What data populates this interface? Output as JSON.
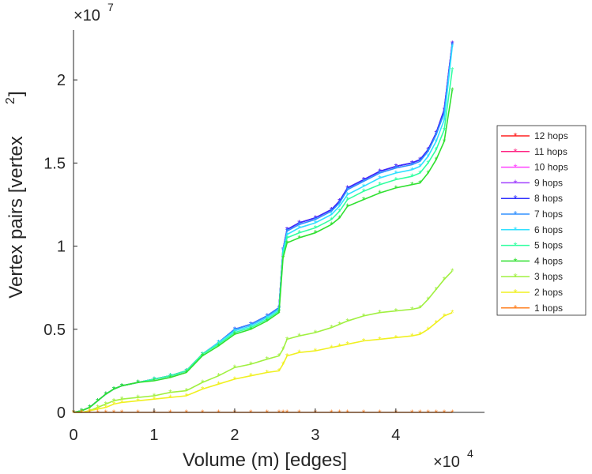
{
  "chart_data": {
    "type": "line",
    "title": "",
    "xlabel": "Volume (m) [edges]",
    "ylabel_main": "Vertex pairs [vertex",
    "ylabel_sup": "2",
    "ylabel_close": "]",
    "x_exponent_base": "×10",
    "x_exponent_power": "4",
    "y_exponent_base": "×10",
    "y_exponent_power": "7",
    "xlim": [
      0,
      5.1
    ],
    "ylim": [
      0,
      2.3
    ],
    "xticks": [
      0,
      1,
      2,
      3,
      4
    ],
    "xtick_labels": [
      "0",
      "1",
      "2",
      "3",
      "4"
    ],
    "yticks": [
      0,
      0.5,
      1,
      1.5,
      2
    ],
    "ytick_labels": [
      "0",
      "0.5",
      "1",
      "1.5",
      "2"
    ],
    "grid": false,
    "legend_position": "right",
    "x": [
      0,
      0.1,
      0.2,
      0.3,
      0.4,
      0.5,
      0.6,
      0.8,
      1.0,
      1.2,
      1.4,
      1.6,
      1.8,
      2.0,
      2.2,
      2.4,
      2.55,
      2.6,
      2.65,
      2.8,
      3.0,
      3.2,
      3.3,
      3.4,
      3.6,
      3.8,
      4.0,
      4.2,
      4.3,
      4.4,
      4.5,
      4.6,
      4.7
    ],
    "series": [
      {
        "name": "12 hops",
        "color": "#ff2020",
        "values": [
          0,
          0.01,
          0.03,
          0.07,
          0.11,
          0.14,
          0.16,
          0.18,
          0.2,
          0.22,
          0.25,
          0.35,
          0.42,
          0.5,
          0.53,
          0.58,
          0.63,
          0.98,
          1.1,
          1.14,
          1.17,
          1.22,
          1.27,
          1.35,
          1.4,
          1.45,
          1.48,
          1.5,
          1.52,
          1.58,
          1.68,
          1.82,
          2.22
        ]
      },
      {
        "name": "11 hops",
        "color": "#ff2080",
        "values": [
          0,
          0.01,
          0.03,
          0.07,
          0.11,
          0.14,
          0.16,
          0.18,
          0.2,
          0.22,
          0.25,
          0.35,
          0.42,
          0.5,
          0.53,
          0.58,
          0.63,
          0.98,
          1.1,
          1.14,
          1.17,
          1.22,
          1.27,
          1.35,
          1.4,
          1.45,
          1.48,
          1.5,
          1.52,
          1.58,
          1.68,
          1.82,
          2.22
        ]
      },
      {
        "name": "10 hops",
        "color": "#ff40ff",
        "values": [
          0,
          0.01,
          0.03,
          0.07,
          0.11,
          0.14,
          0.16,
          0.18,
          0.2,
          0.22,
          0.25,
          0.35,
          0.42,
          0.5,
          0.53,
          0.58,
          0.63,
          0.98,
          1.1,
          1.14,
          1.17,
          1.22,
          1.27,
          1.35,
          1.4,
          1.45,
          1.48,
          1.5,
          1.52,
          1.58,
          1.68,
          1.82,
          2.22
        ]
      },
      {
        "name": "9 hops",
        "color": "#a040ff",
        "values": [
          0,
          0.01,
          0.03,
          0.07,
          0.11,
          0.14,
          0.16,
          0.18,
          0.2,
          0.22,
          0.25,
          0.35,
          0.42,
          0.5,
          0.53,
          0.58,
          0.63,
          0.98,
          1.1,
          1.14,
          1.17,
          1.22,
          1.27,
          1.35,
          1.4,
          1.45,
          1.48,
          1.5,
          1.52,
          1.58,
          1.68,
          1.82,
          2.22
        ]
      },
      {
        "name": "8 hops",
        "color": "#3030ff",
        "values": [
          0,
          0.01,
          0.03,
          0.07,
          0.11,
          0.14,
          0.16,
          0.18,
          0.2,
          0.22,
          0.25,
          0.35,
          0.42,
          0.5,
          0.53,
          0.58,
          0.63,
          0.98,
          1.1,
          1.14,
          1.17,
          1.22,
          1.27,
          1.35,
          1.4,
          1.45,
          1.48,
          1.5,
          1.52,
          1.58,
          1.68,
          1.82,
          2.22
        ]
      },
      {
        "name": "7 hops",
        "color": "#3090ff",
        "values": [
          0,
          0.01,
          0.03,
          0.07,
          0.11,
          0.14,
          0.16,
          0.18,
          0.2,
          0.22,
          0.25,
          0.35,
          0.42,
          0.5,
          0.53,
          0.58,
          0.63,
          0.98,
          1.09,
          1.13,
          1.16,
          1.21,
          1.26,
          1.34,
          1.39,
          1.44,
          1.47,
          1.49,
          1.51,
          1.57,
          1.67,
          1.8,
          2.21
        ]
      },
      {
        "name": "6 hops",
        "color": "#30e0ff",
        "values": [
          0,
          0.01,
          0.03,
          0.07,
          0.11,
          0.14,
          0.16,
          0.18,
          0.2,
          0.22,
          0.25,
          0.35,
          0.42,
          0.49,
          0.52,
          0.57,
          0.62,
          0.97,
          1.07,
          1.11,
          1.14,
          1.19,
          1.24,
          1.31,
          1.36,
          1.41,
          1.44,
          1.46,
          1.48,
          1.54,
          1.63,
          1.76,
          2.2
        ]
      },
      {
        "name": "5 hops",
        "color": "#30ffa0",
        "values": [
          0,
          0.01,
          0.03,
          0.07,
          0.11,
          0.14,
          0.16,
          0.18,
          0.2,
          0.22,
          0.25,
          0.35,
          0.41,
          0.48,
          0.51,
          0.56,
          0.61,
          0.95,
          1.05,
          1.08,
          1.11,
          1.16,
          1.21,
          1.28,
          1.33,
          1.37,
          1.4,
          1.42,
          1.44,
          1.5,
          1.58,
          1.7,
          2.06
        ]
      },
      {
        "name": "4 hops",
        "color": "#30e030",
        "values": [
          0,
          0.01,
          0.03,
          0.07,
          0.11,
          0.14,
          0.16,
          0.18,
          0.19,
          0.21,
          0.24,
          0.34,
          0.4,
          0.47,
          0.5,
          0.55,
          0.6,
          0.93,
          1.02,
          1.05,
          1.08,
          1.13,
          1.17,
          1.24,
          1.28,
          1.32,
          1.35,
          1.37,
          1.38,
          1.44,
          1.52,
          1.63,
          1.94
        ]
      },
      {
        "name": "3 hops",
        "color": "#a0f040",
        "values": [
          0,
          0.0,
          0.01,
          0.03,
          0.05,
          0.07,
          0.08,
          0.09,
          0.1,
          0.12,
          0.13,
          0.18,
          0.22,
          0.27,
          0.29,
          0.32,
          0.34,
          0.38,
          0.44,
          0.46,
          0.48,
          0.51,
          0.53,
          0.55,
          0.58,
          0.6,
          0.61,
          0.62,
          0.63,
          0.68,
          0.74,
          0.8,
          0.85
        ]
      },
      {
        "name": "2 hops",
        "color": "#f0f020",
        "values": [
          0,
          0.0,
          0.01,
          0.02,
          0.03,
          0.05,
          0.06,
          0.07,
          0.08,
          0.09,
          0.1,
          0.14,
          0.17,
          0.2,
          0.22,
          0.24,
          0.25,
          0.29,
          0.34,
          0.36,
          0.37,
          0.39,
          0.4,
          0.41,
          0.43,
          0.44,
          0.45,
          0.46,
          0.47,
          0.5,
          0.54,
          0.58,
          0.6
        ]
      },
      {
        "name": "1 hops",
        "color": "#ff8020",
        "values": [
          0,
          0,
          0,
          0,
          0,
          0,
          0,
          0,
          0,
          0,
          0,
          0,
          0,
          0,
          0,
          0,
          0,
          0,
          0,
          0,
          0,
          0,
          0,
          0,
          0,
          0,
          0,
          0,
          0,
          0,
          0,
          0,
          0
        ]
      }
    ]
  }
}
